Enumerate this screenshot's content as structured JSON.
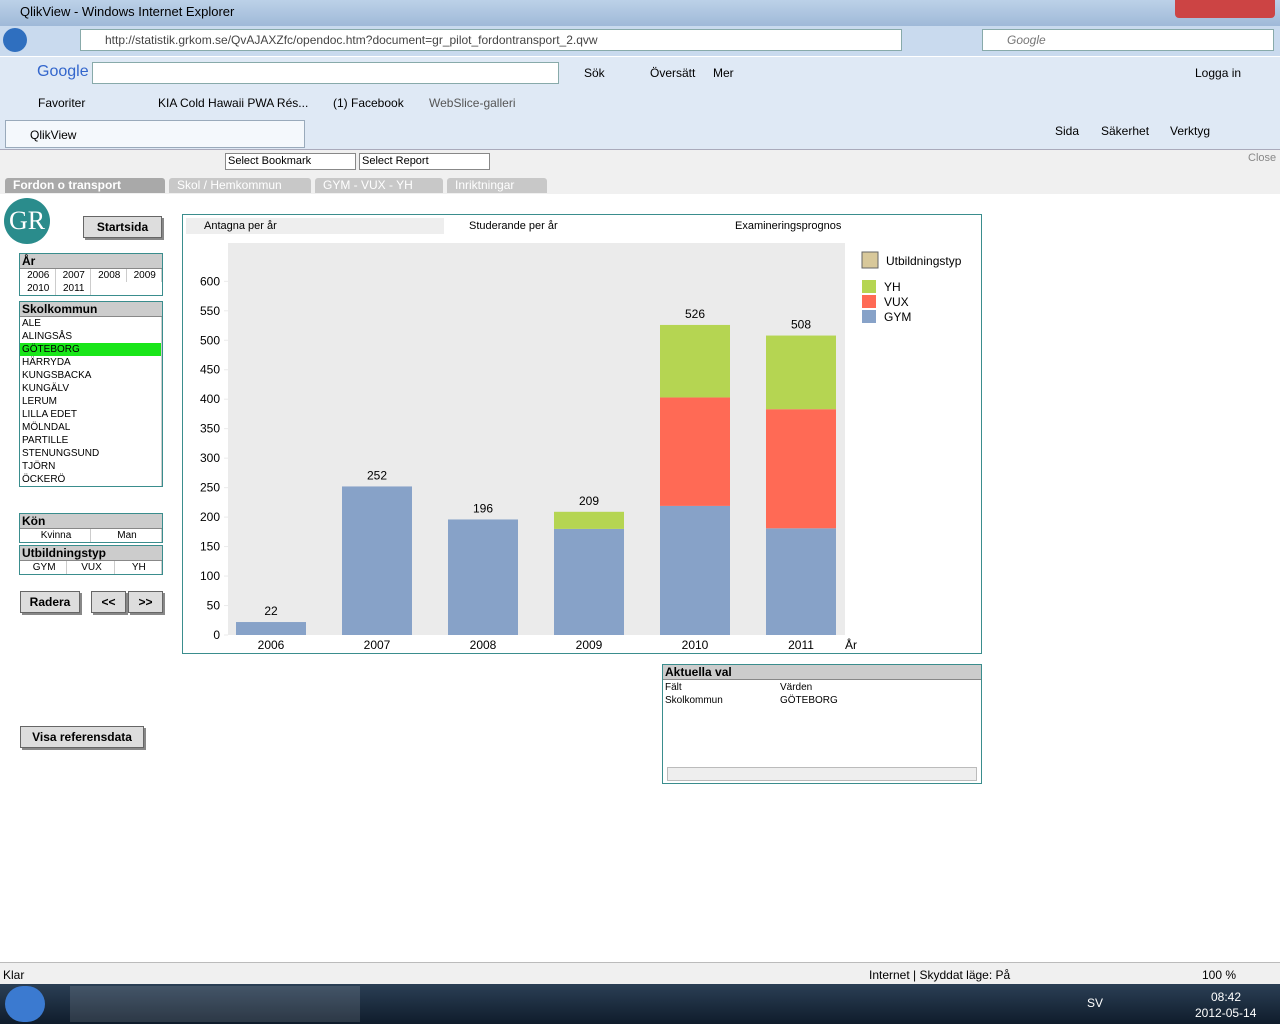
{
  "window_title": "QlikView - Windows Internet Explorer",
  "address": "http://statistik.grkom.se/QvAJAXZfc/opendoc.htm?document=gr_pilot_fordontransport_2.qvw",
  "search_box": "Google",
  "google_toolbar": {
    "logo": "Google",
    "items": [
      "Sök",
      "Översätt",
      "Mer"
    ],
    "login": "Logga in"
  },
  "favorites": {
    "label": "Favoriter",
    "items": [
      "KIA Cold Hawaii PWA Rés...",
      "(1) Facebook",
      "WebSlice-galleri"
    ]
  },
  "tab": "QlikView",
  "command_bar": [
    "Sida",
    "Säkerhet",
    "Verktyg"
  ],
  "qv_toolbar": {
    "bookmark": "Select Bookmark",
    "report": "Select Report",
    "close": "Close"
  },
  "sheet_tabs": [
    "Fordon o transport",
    "Skol / Hemkommun",
    "GYM - VUX - YH",
    "Inriktningar"
  ],
  "logo": "GR",
  "buttons": {
    "start": "Startsida",
    "clear": "Radera",
    "back": "<<",
    "forward": ">>",
    "reference": "Visa referensdata"
  },
  "listboxes": [
    {
      "title": "År",
      "columns": 4,
      "items": [
        "2006",
        "2007",
        "2008",
        "2009",
        "2010",
        "2011"
      ]
    },
    {
      "title": "Skolkommun",
      "columns": 1,
      "selected": 2,
      "items": [
        "ALE",
        "ALINGSÅS",
        "GÖTEBORG",
        "HÄRRYDA",
        "KUNGSBACKA",
        "KUNGÄLV",
        "LERUM",
        "LILLA EDET",
        "MÖLNDAL",
        "PARTILLE",
        "STENUNGSUND",
        "TJÖRN",
        "ÖCKERÖ"
      ]
    },
    {
      "title": "Kön",
      "columns": 2,
      "items": [
        "Kvinna",
        "Man"
      ]
    },
    {
      "title": "Utbildningstyp",
      "columns": 3,
      "items": [
        "GYM",
        "VUX",
        "YH"
      ]
    }
  ],
  "chart_tabs": [
    "Antagna per år",
    "Studerande per år",
    "Examineringsprognos"
  ],
  "chart_data": {
    "type": "bar",
    "stacked": true,
    "x_label": "År",
    "legend_title": "Utbildningstyp",
    "categories": [
      "2006",
      "2007",
      "2008",
      "2009",
      "2010",
      "2011"
    ],
    "series": [
      {
        "name": "GYM",
        "color": "#87a2c8",
        "values": [
          22,
          252,
          196,
          180,
          219,
          181
        ]
      },
      {
        "name": "VUX",
        "color": "#ff6a55",
        "values": [
          0,
          0,
          0,
          0,
          184,
          202
        ]
      },
      {
        "name": "YH",
        "color": "#b5d552",
        "values": [
          0,
          0,
          0,
          29,
          123,
          125
        ]
      }
    ],
    "totals": [
      22,
      252,
      196,
      209,
      526,
      508
    ],
    "ylim": [
      0,
      665
    ],
    "yticks": [
      0,
      50,
      100,
      150,
      200,
      250,
      300,
      350,
      400,
      450,
      500,
      550,
      600
    ]
  },
  "current_selections": {
    "title": "Aktuella val",
    "columns": [
      "Fält",
      "Värden"
    ],
    "rows": [
      [
        "Skolkommun",
        "GÖTEBORG"
      ]
    ]
  },
  "status_bar": {
    "left": "Klar",
    "zone": "Internet | Skyddat läge: På",
    "zoom": "100 %"
  },
  "taskbar": {
    "language": "SV",
    "time": "08:42",
    "date": "2012-05-14"
  }
}
